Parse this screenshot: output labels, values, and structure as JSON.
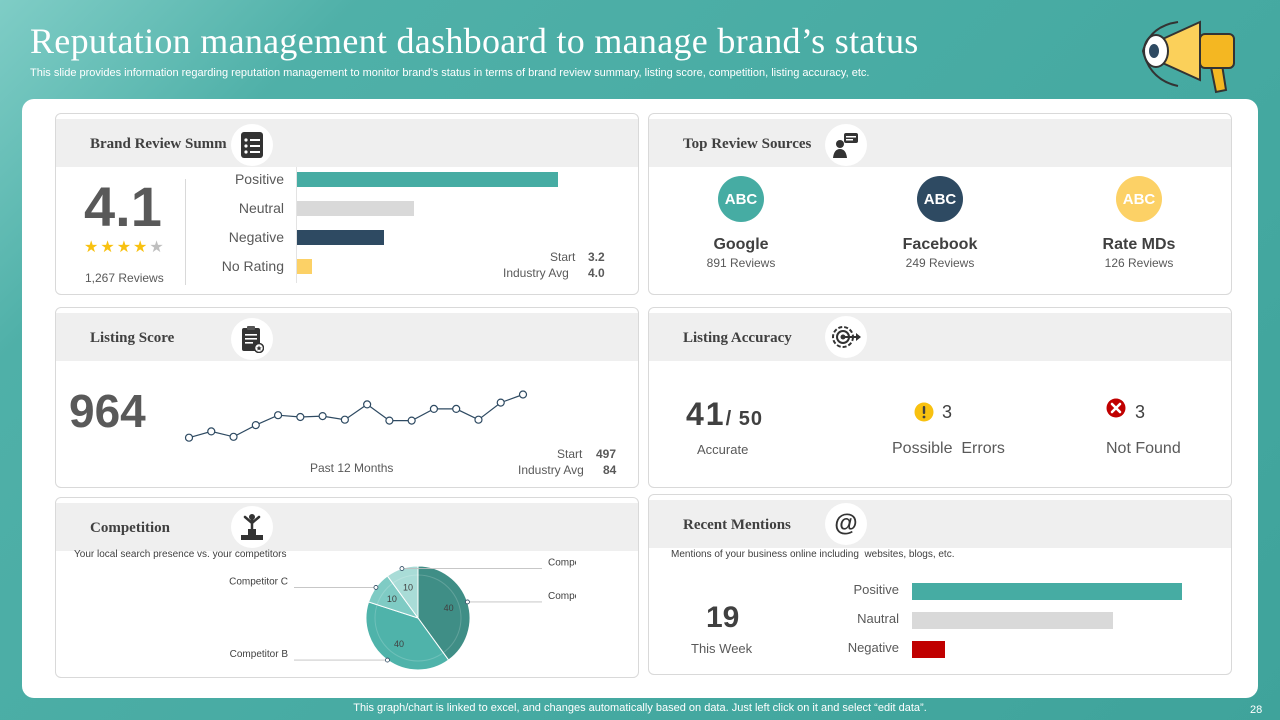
{
  "slide": {
    "title": "Reputation management dashboard to manage brand’s status",
    "subtitle": "This slide provides information regarding reputation management to monitor brand’s status in terms of brand review summary, listing score, competition, listing accuracy, etc.",
    "footer": "This graph/chart is linked to excel,  and changes automatically based on data. Just left click on it and select “edit data”.",
    "page_number": "28"
  },
  "colors": {
    "teal": "#46aca3",
    "navy": "#2e4a62",
    "gray": "#d9d9d9",
    "yellow": "#fcd166",
    "red": "#c00000"
  },
  "brand_review": {
    "title": "Brand Review Summ",
    "rating": "4.1",
    "stars": {
      "filled": 4,
      "total": 5
    },
    "reviews": "1,267 Reviews",
    "bars": [
      {
        "label": "Positive",
        "value": 0.87,
        "color": "#46aca3"
      },
      {
        "label": "Neutral",
        "value": 0.39,
        "color": "#d9d9d9"
      },
      {
        "label": "Negative",
        "value": 0.29,
        "color": "#2e4a62"
      },
      {
        "label": "No Rating",
        "value": 0.05,
        "color": "#fcd166"
      }
    ],
    "start_label": "Start",
    "start_value": "3.2",
    "industry_label": "Industry Avg",
    "industry_value": "4.0"
  },
  "top_sources": {
    "title": "Top Review Sources",
    "sources": [
      {
        "logo": "ABC",
        "name": "Google",
        "reviews": "891 Reviews",
        "color": "#46aca3"
      },
      {
        "logo": "ABC",
        "name": "Facebook",
        "reviews": "249 Reviews",
        "color": "#2e4a62"
      },
      {
        "logo": "ABC",
        "name": "Rate MDs",
        "reviews": "126 Reviews",
        "color": "#fcd166"
      }
    ]
  },
  "listing_score": {
    "title": "Listing Score",
    "score": "964",
    "period": "Past 12 Months",
    "start_label": "Start",
    "start_value": "497",
    "industry_label": "Industry Avg",
    "industry_value": "84"
  },
  "listing_accuracy": {
    "title": "Listing Accuracy",
    "accurate_num": "41",
    "accurate_den": "/ 50",
    "accurate_label": "Accurate",
    "errors_value": "3",
    "errors_label": "Possible  Errors",
    "not_found_value": "3",
    "not_found_label": "Not Found"
  },
  "competition": {
    "title": "Competition",
    "subtitle": "Your local search presence vs. your competitors"
  },
  "recent_mentions": {
    "title": "Recent Mentions",
    "subtitle": "Mentions of your business online including  websites, blogs, etc.",
    "count": "19",
    "period": "This Week",
    "bars": [
      {
        "label": "Positive",
        "value": 0.9,
        "color": "#46aca3"
      },
      {
        "label": "Nautral",
        "value": 0.67,
        "color": "#d9d9d9"
      },
      {
        "label": "Negative",
        "value": 0.11,
        "color": "#c00000"
      }
    ]
  },
  "chart_data": [
    {
      "type": "line",
      "title": "",
      "x": [
        1,
        2,
        3,
        4,
        5,
        6,
        7,
        8,
        9,
        10,
        11,
        12,
        13,
        14,
        15,
        16
      ],
      "values": [
        27,
        34,
        28,
        41,
        52,
        50,
        51,
        47,
        64,
        46,
        46,
        59,
        59,
        47,
        66,
        75
      ],
      "ylim": [
        0,
        100
      ],
      "grid": false,
      "xlabel": "Past 12 Months"
    },
    {
      "type": "pie",
      "title": "",
      "categories": [
        "Competitor A",
        "Competitor B",
        "Competitor C",
        "Competitor D"
      ],
      "values": [
        40,
        40,
        10,
        10
      ],
      "colors": [
        "#3f8e86",
        "#4fb3aa",
        "#7fcbc4",
        "#a9dcd7"
      ]
    }
  ]
}
